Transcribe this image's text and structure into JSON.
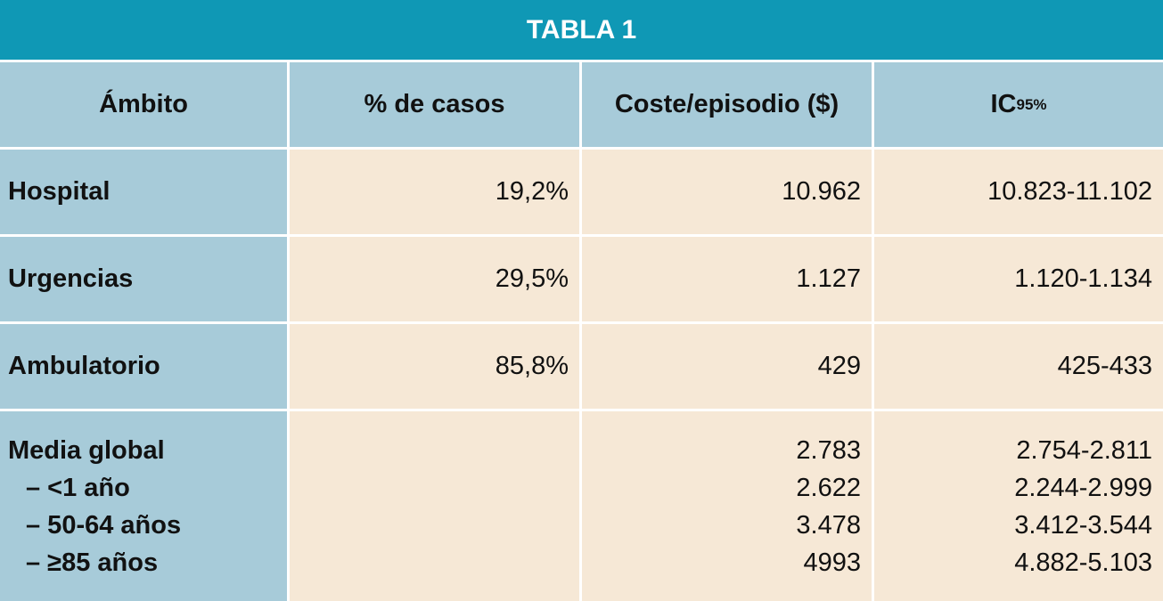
{
  "title": "TABLA 1",
  "headers": {
    "ambito": "Ámbito",
    "casos": "% de casos",
    "coste": "Coste/episodio ($)",
    "ic": "IC",
    "ic_sub": "95%"
  },
  "rows": [
    {
      "ambito": "Hospital",
      "casos": "19,2%",
      "coste": "10.962",
      "ic": "10.823-11.102"
    },
    {
      "ambito": "Urgencias",
      "casos": "29,5%",
      "coste": "1.127",
      "ic": "1.120-1.134"
    },
    {
      "ambito": "Ambulatorio",
      "casos": "85,8%",
      "coste": "429",
      "ic": "425-433"
    }
  ],
  "global": {
    "labels": [
      "Media global",
      "–  <1 año",
      "–  50-64 años",
      "–  ≥85 años"
    ],
    "coste": [
      "2.783",
      "2.622",
      "3.478",
      "4993"
    ],
    "ic": [
      "2.754-2.811",
      "2.244-2.999",
      "3.412-3.544",
      "4.882-5.103"
    ]
  }
}
